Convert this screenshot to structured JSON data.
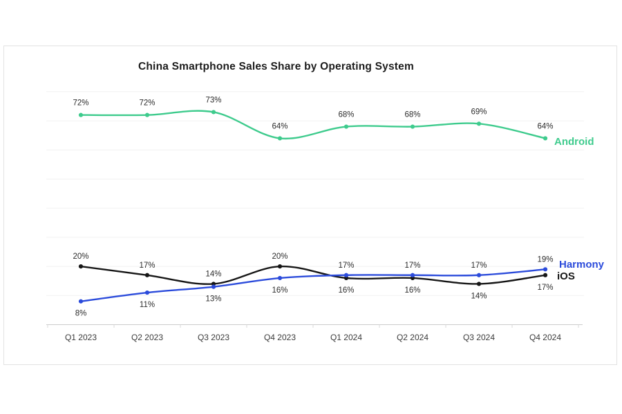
{
  "chart_data": {
    "type": "line",
    "title": "China Smartphone Sales Share by Operating System",
    "categories": [
      "Q1 2023",
      "Q2 2023",
      "Q3 2023",
      "Q4 2023",
      "Q1 2024",
      "Q2 2024",
      "Q3 2024",
      "Q4 2024"
    ],
    "series": [
      {
        "name": "Android",
        "color": "#3ecb8d",
        "values": [
          72,
          72,
          73,
          64,
          68,
          68,
          69,
          64
        ],
        "label_side": [
          "above",
          "above",
          "above",
          "above",
          "above",
          "above",
          "above",
          "above"
        ]
      },
      {
        "name": "Harmony",
        "color": "#2b4bdb",
        "values": [
          8,
          11,
          13,
          16,
          17,
          17,
          17,
          19
        ],
        "label_side": [
          "below",
          "below",
          "below",
          "below",
          "above",
          "above",
          "above",
          "above"
        ]
      },
      {
        "name": "iOS",
        "color": "#161616",
        "values": [
          20,
          17,
          14,
          20,
          16,
          16,
          14,
          17
        ],
        "label_side": [
          "above",
          "above",
          "above",
          "above",
          "below",
          "below",
          "below",
          "below"
        ]
      }
    ],
    "data_label_format": "{v}%",
    "ylim": [
      0,
      80
    ],
    "gridline_step": 10,
    "grid": "horizontal",
    "legend_position": "end-of-line",
    "axis_color": "#cccccc",
    "gridline_color": "#f1f1f1",
    "label_color": "#2b2b2b",
    "xaxis_label_color": "#3a3a3a"
  }
}
